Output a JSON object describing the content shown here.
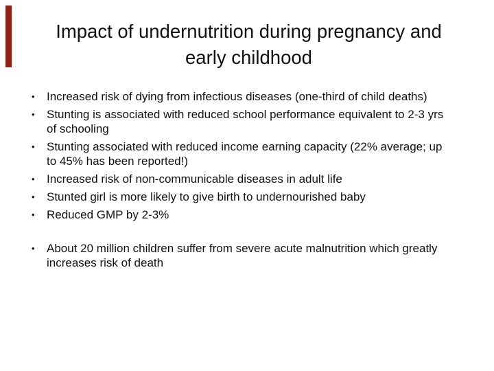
{
  "slide": {
    "background_color": "#ffffff",
    "text_color": "#111111",
    "accent_bar_color": "#8F2318",
    "title": {
      "full": "Impact of undernutrition during pregnancy and early childhood",
      "lines": [
        "Impact of undernutrition during pregnancy and",
        "early childhood"
      ]
    },
    "bullet_char": "•",
    "bullets_main": [
      "Increased risk of dying from infectious diseases (one-third of child deaths)",
      "Stunting is associated with reduced school performance  equivalent to 2-3 yrs of schooling",
      "Stunting associated with reduced income earning capacity (22% average; up to 45% has been reported!)",
      "Increased risk of non-communicable diseases in adult life",
      "Stunted girl is more likely to give birth to undernourished baby",
      "Reduced GMP by 2-3%"
    ],
    "bullets_secondary": [
      "About 20 million children suffer from severe acute malnutrition which greatly increases risk of death"
    ]
  }
}
